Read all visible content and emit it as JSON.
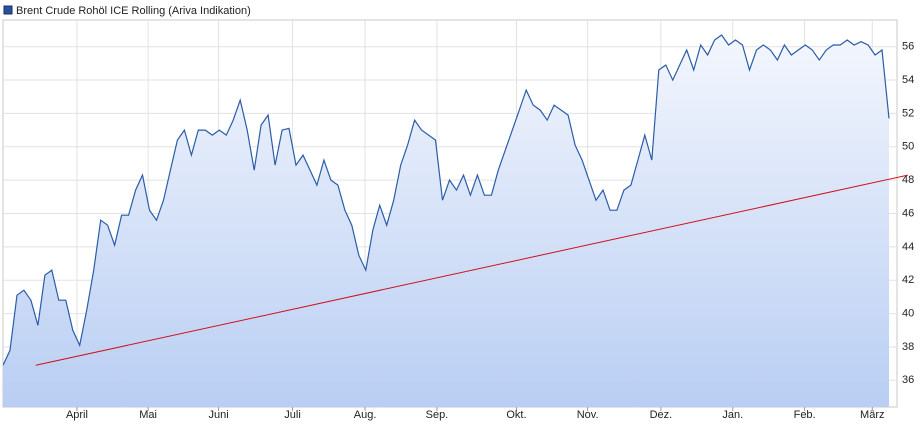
{
  "chart_data": {
    "type": "area-line",
    "series": [
      {
        "name": "Brent Crude Rohöl ICE Rolling (Ariva Indikation)",
        "color": "#2a5ca8",
        "values": [
          36.9,
          37.8,
          41.1,
          41.4,
          40.8,
          39.3,
          42.3,
          42.6,
          40.8,
          40.8,
          39.0,
          38.1,
          40.2,
          42.6,
          45.6,
          45.3,
          44.1,
          45.9,
          45.9,
          47.4,
          48.3,
          46.2,
          45.6,
          46.8,
          48.6,
          50.4,
          51.0,
          49.5,
          51.0,
          51.0,
          50.7,
          51.0,
          50.7,
          51.6,
          52.8,
          51.0,
          48.6,
          51.3,
          51.9,
          48.9,
          51.0,
          51.1,
          48.9,
          49.5,
          48.6,
          47.7,
          49.2,
          48.0,
          47.7,
          46.2,
          45.3,
          43.5,
          42.6,
          45.0,
          46.5,
          45.3,
          46.8,
          48.9,
          50.1,
          51.6,
          51.0,
          50.7,
          50.4,
          46.8,
          48.0,
          47.4,
          48.3,
          47.1,
          48.3,
          47.1,
          47.1,
          48.6,
          49.8,
          51.0,
          52.2,
          53.4,
          52.5,
          52.2,
          51.6,
          52.5,
          52.2,
          51.9,
          50.1,
          49.2,
          48.0,
          46.8,
          47.4,
          46.2,
          46.2,
          47.4,
          47.7,
          49.2,
          50.7,
          49.2,
          54.6,
          54.9,
          54.0,
          54.9,
          55.8,
          54.6,
          56.1,
          55.5,
          56.4,
          56.7,
          56.1,
          56.4,
          56.1,
          54.6,
          55.8,
          56.1,
          55.8,
          55.2,
          56.1,
          55.5,
          55.8,
          56.1,
          55.8,
          55.2,
          55.8,
          56.1,
          56.1,
          56.4,
          56.1,
          56.3,
          56.1,
          55.5,
          55.8,
          51.7
        ]
      }
    ],
    "trendline": {
      "color": "#d0101a",
      "x": [
        4.7,
        129.7
      ],
      "values": [
        36.9,
        48.3
      ]
    },
    "xlim": [
      0,
      128
    ],
    "xticks": [
      {
        "value": 10.6,
        "label": "April"
      },
      {
        "value": 20.8,
        "label": "Mai"
      },
      {
        "value": 30.9,
        "label": "Juni"
      },
      {
        "value": 41.5,
        "label": "Juli"
      },
      {
        "value": 51.9,
        "label": "Aug."
      },
      {
        "value": 62.2,
        "label": "Sep."
      },
      {
        "value": 73.6,
        "label": "Okt."
      },
      {
        "value": 83.8,
        "label": "Nov."
      },
      {
        "value": 94.3,
        "label": "Dez."
      },
      {
        "value": 104.6,
        "label": "Jan."
      },
      {
        "value": 114.9,
        "label": "Feb."
      },
      {
        "value": 124.6,
        "label": "März"
      }
    ],
    "ylim": [
      34.4,
      57.6
    ],
    "yticks": [
      36,
      38,
      40,
      42,
      44,
      46,
      48,
      50,
      52,
      54,
      56
    ],
    "grid": true
  }
}
